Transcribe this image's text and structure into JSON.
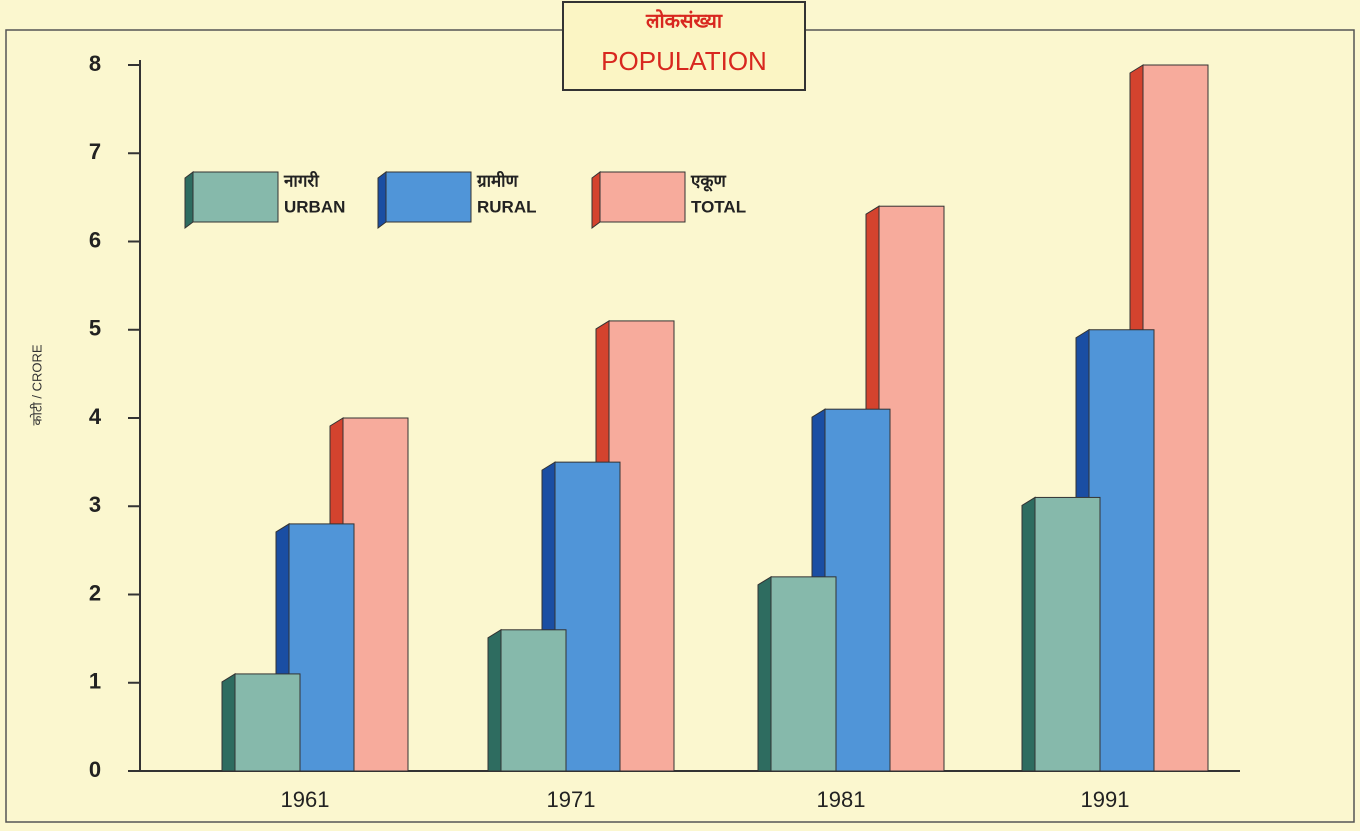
{
  "chart_data": {
    "type": "bar3d",
    "title_local": "लोकसंख्या",
    "title": "POPULATION",
    "ylabel": "कोटी  /  CRORE",
    "categories": [
      "1961",
      "1971",
      "1981",
      "1991"
    ],
    "series": [
      {
        "name": "URBAN",
        "local_name": "नागरी",
        "color": "#86b9ab",
        "side_color": "#2e6c60",
        "values": [
          1.1,
          1.6,
          2.2,
          3.1
        ]
      },
      {
        "name": "RURAL",
        "local_name": "ग्रामीण",
        "color": "#5095d8",
        "side_color": "#1a4ea3",
        "values": [
          2.8,
          3.5,
          4.1,
          5.0
        ]
      },
      {
        "name": "TOTAL",
        "local_name": "एकूण",
        "color": "#f7ab9c",
        "side_color": "#d4432e",
        "values": [
          4.0,
          5.1,
          6.4,
          8.0
        ]
      }
    ],
    "ylim": [
      0,
      8
    ],
    "yticks": [
      0,
      1,
      2,
      3,
      4,
      5,
      6,
      7,
      8
    ]
  }
}
